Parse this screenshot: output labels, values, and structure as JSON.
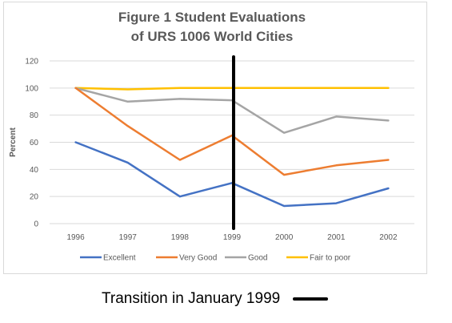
{
  "chart_data": {
    "type": "line",
    "title_lines": [
      "Figure 1 Student Evaluations",
      "of URS 1006 World Cities"
    ],
    "ylabel": "Percent",
    "xlabel": "",
    "categories": [
      "1996",
      "1997",
      "1998",
      "1999",
      "2000",
      "2001",
      "2002"
    ],
    "ylim": [
      0,
      120
    ],
    "yticks": [
      0,
      20,
      40,
      60,
      80,
      100,
      120
    ],
    "grid": true,
    "legend_position": "bottom",
    "series": [
      {
        "name": "Excellent",
        "color": "#4472c4",
        "values": [
          60,
          45,
          20,
          30,
          13,
          15,
          26
        ]
      },
      {
        "name": "Very Good",
        "color": "#ed7d31",
        "values": [
          100,
          72,
          47,
          65,
          36,
          43,
          47
        ]
      },
      {
        "name": "Good",
        "color": "#a5a5a5",
        "values": [
          100,
          90,
          92,
          91,
          67,
          79,
          76
        ]
      },
      {
        "name": "Fair to poor",
        "color": "#ffc000",
        "values": [
          100,
          99,
          100,
          100,
          100,
          100,
          100
        ]
      }
    ],
    "annotation": {
      "type": "vertical-line",
      "at_category": "1999",
      "color": "#000000"
    }
  },
  "caption": {
    "text": "Transition in January 1999"
  }
}
